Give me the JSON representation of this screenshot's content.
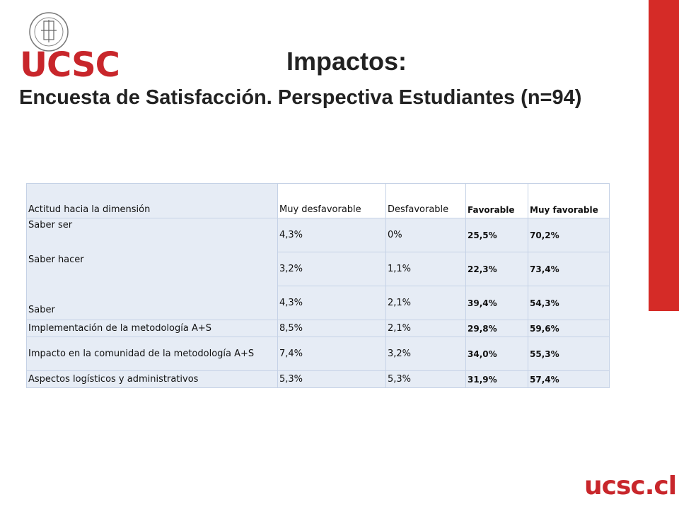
{
  "brand": {
    "logo_top": "UCSC",
    "logo_bottom": "ucsc.cl",
    "accent_color": "#d52b27",
    "seal_icon": "university-seal-icon"
  },
  "title": "Impactos:",
  "subtitle": "Encuesta de Satisfacción. Perspectiva Estudiantes (n=94)",
  "table": {
    "headers": [
      "Actitud hacia la dimensión",
      "Muy desfavorable",
      "Desfavorable",
      "Favorable",
      "Muy favorable"
    ],
    "rows": [
      {
        "label": "Saber ser",
        "values": [
          "4,3%",
          "0%",
          "25,5%",
          "70,2%"
        ]
      },
      {
        "label": "Saber hacer",
        "values": [
          "3,2%",
          "1,1%",
          "22,3%",
          "73,4%"
        ]
      },
      {
        "label": "Saber",
        "values": [
          "4,3%",
          "2,1%",
          "39,4%",
          "54,3%"
        ]
      },
      {
        "label": "Implementación de la metodología A+S",
        "values": [
          "8,5%",
          "2,1%",
          "29,8%",
          "59,6%"
        ]
      },
      {
        "label": "Impacto en la comunidad de la metodología A+S",
        "values": [
          "7,4%",
          "3,2%",
          "34,0%",
          "55,3%"
        ]
      },
      {
        "label": "Aspectos logísticos y administrativos",
        "values": [
          "5,3%",
          "5,3%",
          "31,9%",
          "57,4%"
        ]
      }
    ]
  }
}
